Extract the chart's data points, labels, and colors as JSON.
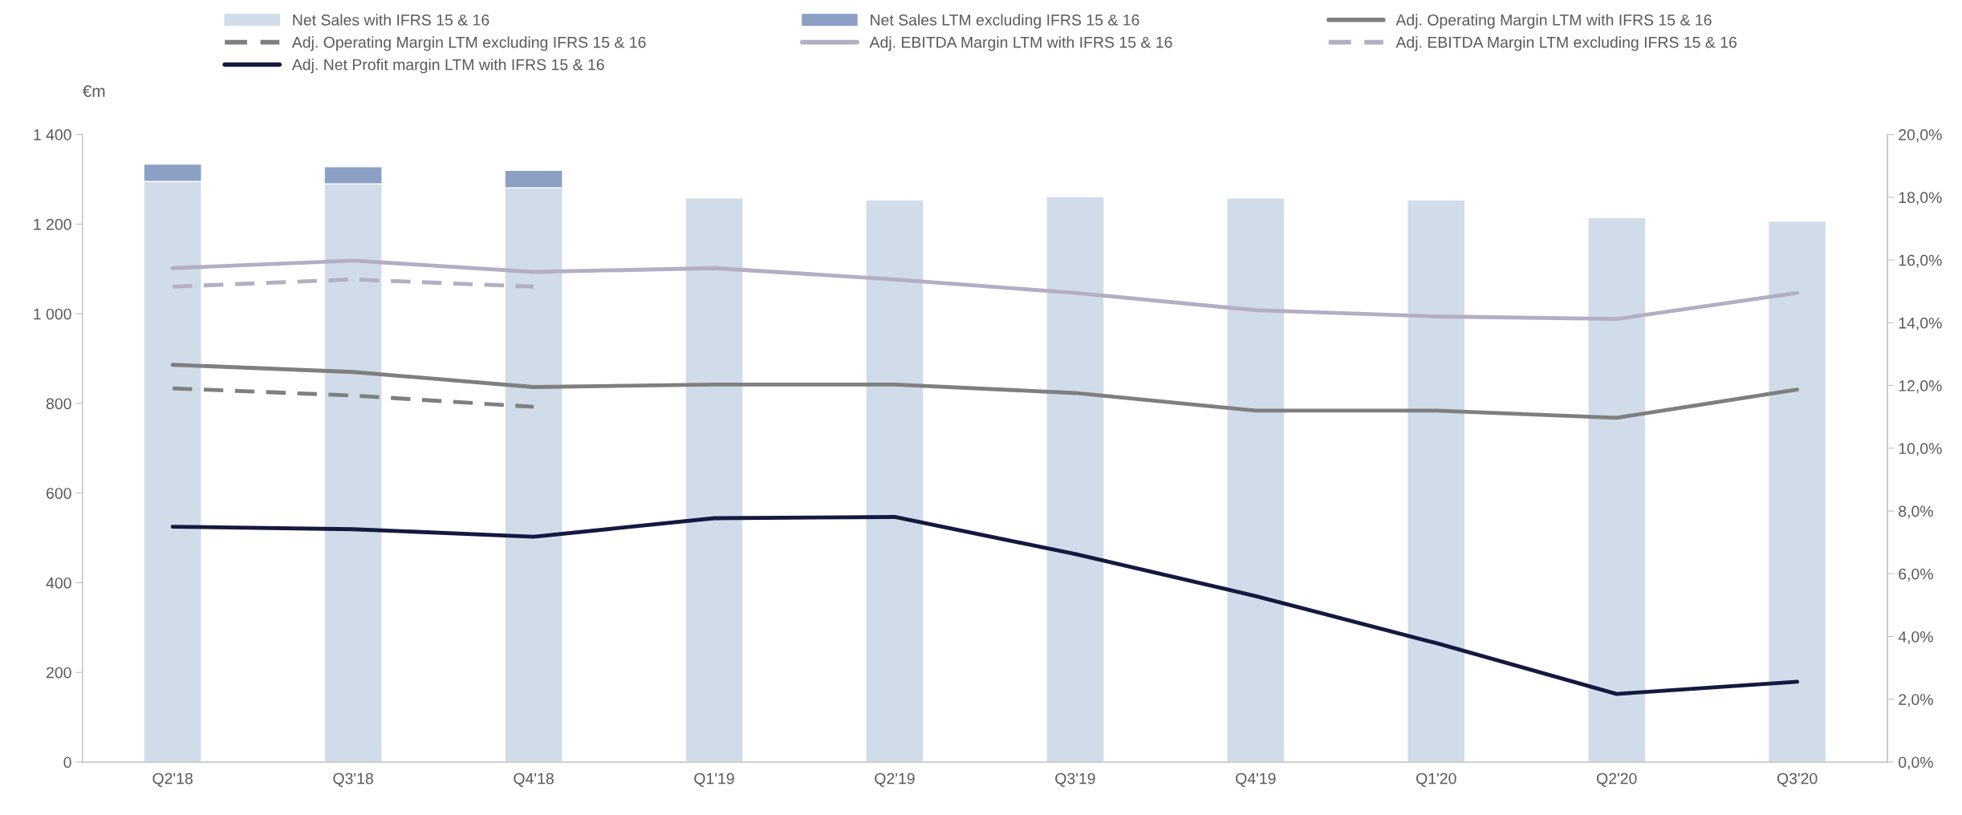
{
  "chart_data": {
    "type": "bar",
    "stacked": true,
    "ylabel": "€m",
    "legend": "top",
    "grid": false,
    "categories": [
      "Q2'18",
      "Q3'18",
      "Q4'18",
      "Q1'19",
      "Q2'19",
      "Q3'19",
      "Q4'19",
      "Q1'20",
      "Q2'20",
      "Q3'20"
    ],
    "ylim": [
      0,
      1400
    ],
    "yticks": [
      0,
      200,
      400,
      600,
      800,
      {
        "value": 1000,
        "label": "1 000"
      },
      {
        "value": 1200,
        "label": "1 200"
      },
      {
        "value": 1400,
        "label": "1 400"
      }
    ],
    "y2lim": [
      0,
      20
    ],
    "y2ticks": [
      {
        "value": 0,
        "label": "0,0%"
      },
      {
        "value": 2,
        "label": "2,0%"
      },
      {
        "value": 4,
        "label": "4,0%"
      },
      {
        "value": 6,
        "label": "6,0%"
      },
      {
        "value": 8,
        "label": "8,0%"
      },
      {
        "value": 10,
        "label": "10,0%"
      },
      {
        "value": 12,
        "label": "12,0%"
      },
      {
        "value": 14,
        "label": "14,0%"
      },
      {
        "value": 16,
        "label": "16,0%"
      },
      {
        "value": 18,
        "label": "18,0%"
      },
      {
        "value": 20,
        "label": "20,0%"
      }
    ],
    "series": [
      {
        "name": "Net Sales with IFRS 15 & 16",
        "color": "#d0dce9",
        "values": [
          1295,
          1290,
          1281,
          1259,
          1254,
          1262,
          1259,
          1254,
          1215,
          1207
        ]
      },
      {
        "name": "Net Sales LTM excluding IFRS 15 & 16",
        "color": "#8ba0c4",
        "values": [
          39,
          38,
          39,
          null,
          null,
          null,
          null,
          null,
          null,
          null
        ]
      },
      {
        "name": "Adj. Operating Margin LTM with IFRS 15 & 16",
        "type": "line",
        "axis": "y2",
        "line_style": "solid",
        "color": "#7f7f7f",
        "values": [
          12.66,
          12.43,
          11.95,
          12.03,
          12.03,
          11.76,
          11.2,
          11.2,
          10.97,
          11.87
        ]
      },
      {
        "name": "Adj. Operating Margin LTM excluding IFRS 15 & 16",
        "type": "line",
        "axis": "y2",
        "line_style": "dashed",
        "color": "#7f7f7f",
        "values": [
          11.91,
          11.68,
          11.32,
          null,
          null,
          null,
          null,
          null,
          null,
          null
        ]
      },
      {
        "name": "Adj. EBITDA Margin LTM with IFRS 15 & 16",
        "type": "line",
        "axis": "y2",
        "line_style": "solid",
        "color": "#b3aec3",
        "values": [
          15.74,
          15.98,
          15.62,
          15.74,
          15.38,
          14.95,
          14.4,
          14.2,
          14.12,
          14.95
        ]
      },
      {
        "name": "Adj. EBITDA Margin LTM excluding IFRS 15 & 16",
        "type": "line",
        "axis": "y2",
        "line_style": "dashed",
        "color": "#b3aec3",
        "values": [
          15.15,
          15.38,
          15.15,
          null,
          null,
          null,
          null,
          null,
          null,
          null
        ]
      },
      {
        "name": "Adj. Net Profit margin LTM with IFRS 15 & 16",
        "type": "line",
        "axis": "y2",
        "line_style": "solid",
        "color": "#14193f",
        "values": [
          7.5,
          7.42,
          7.18,
          7.77,
          7.81,
          6.63,
          5.29,
          3.79,
          2.17,
          2.56
        ]
      }
    ]
  }
}
